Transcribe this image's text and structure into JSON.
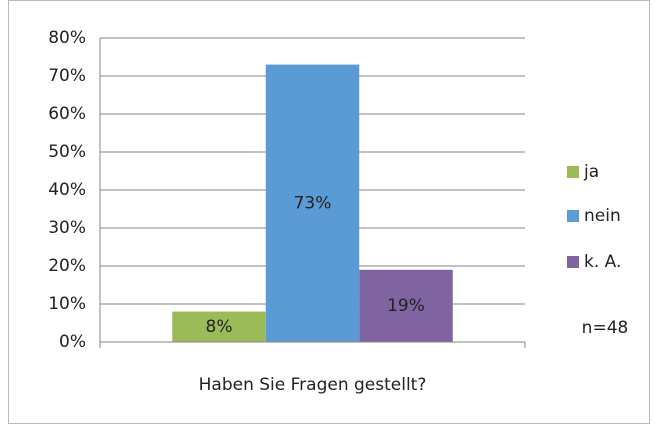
{
  "chart_data": {
    "type": "bar",
    "categories": [
      "Haben Sie Fragen gestellt?"
    ],
    "series": [
      {
        "name": "ja",
        "color": "#9bbb59",
        "values": [
          8
        ],
        "value_labels": [
          "8%"
        ]
      },
      {
        "name": "nein",
        "color": "#5b9bd5",
        "values": [
          73
        ],
        "value_labels": [
          "73%"
        ]
      },
      {
        "name": "k. A.",
        "color": "#8064a2",
        "values": [
          19
        ],
        "value_labels": [
          "19%"
        ]
      }
    ],
    "ylim": [
      0,
      80
    ],
    "yticks": [
      {
        "value": 0,
        "label": "0%"
      },
      {
        "value": 10,
        "label": "10%"
      },
      {
        "value": 20,
        "label": "20%"
      },
      {
        "value": 30,
        "label": "30%"
      },
      {
        "value": 40,
        "label": "40%"
      },
      {
        "value": 50,
        "label": "50%"
      },
      {
        "value": 60,
        "label": "60%"
      },
      {
        "value": 70,
        "label": "70%"
      },
      {
        "value": 80,
        "label": "80%"
      }
    ],
    "grid": true,
    "legend": "right",
    "annotation": "n=48"
  }
}
